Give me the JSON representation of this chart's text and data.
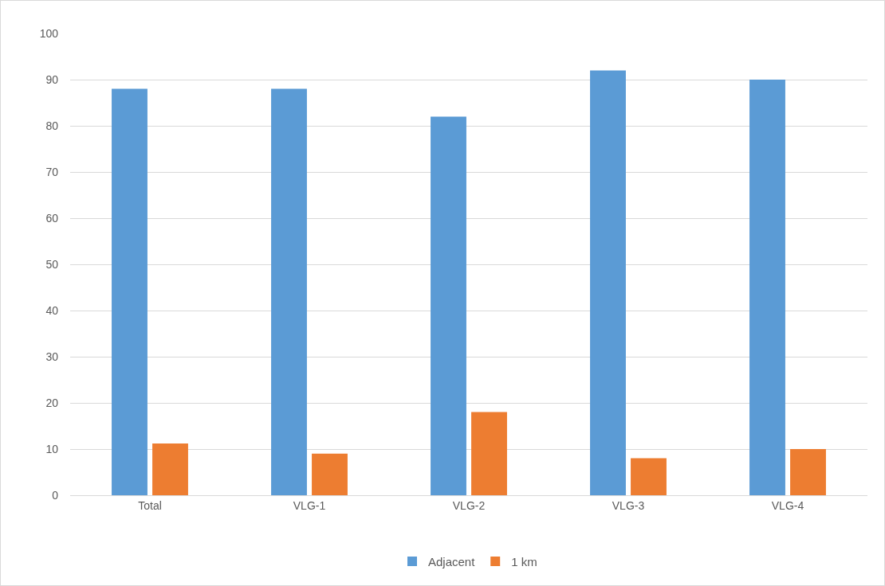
{
  "chart_data": {
    "type": "bar",
    "categories": [
      "Total",
      "VLG-1",
      "VLG-2",
      "VLG-3",
      "VLG-4"
    ],
    "series": [
      {
        "name": "Adjacent",
        "color": "#5b9bd5",
        "values": [
          88,
          88,
          82,
          92,
          90
        ]
      },
      {
        "name": "1 km",
        "color": "#ed7d31",
        "values": [
          11.2,
          9,
          18,
          8,
          10
        ]
      }
    ],
    "ylim": [
      0,
      100
    ],
    "yticks": [
      0,
      10,
      20,
      30,
      40,
      50,
      60,
      70,
      80,
      90,
      100
    ],
    "grid": "y",
    "legend": "bottom"
  }
}
